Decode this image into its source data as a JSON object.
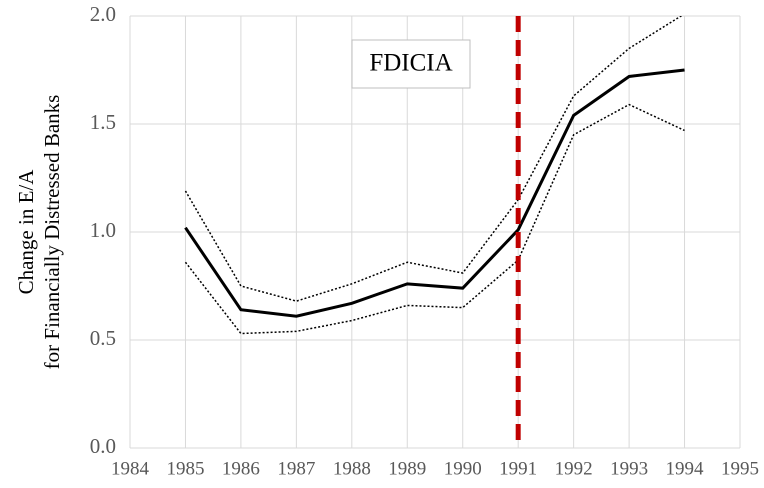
{
  "chart_data": {
    "type": "line",
    "ylabel": [
      "Change in E/A",
      "for Financially  Distressed Banks"
    ],
    "x": [
      1985,
      1986,
      1987,
      1988,
      1989,
      1990,
      1991,
      1992,
      1993,
      1994
    ],
    "series": [
      {
        "color": "#000000",
        "style": "solid",
        "values": [
          1.02,
          0.64,
          0.61,
          0.67,
          0.76,
          0.74,
          1.01,
          1.54,
          1.72,
          1.75
        ]
      },
      {
        "color": "#000000",
        "style": "dotted",
        "values": [
          1.19,
          0.75,
          0.68,
          0.76,
          0.86,
          0.81,
          1.15,
          1.63,
          1.85,
          2.01
        ]
      },
      {
        "color": "#000000",
        "style": "dotted",
        "values": [
          0.86,
          0.53,
          0.54,
          0.59,
          0.66,
          0.65,
          0.87,
          1.45,
          1.59,
          1.47
        ]
      }
    ],
    "reference_line": {
      "x": 1991,
      "color": "#c00000",
      "label": "FDICIA"
    },
    "xlim": [
      1984,
      1995
    ],
    "xticks": [
      1984,
      1985,
      1986,
      1987,
      1988,
      1989,
      1990,
      1991,
      1992,
      1993,
      1994,
      1995
    ],
    "ylim": [
      0,
      2
    ],
    "yticks": [
      {
        "value": 0,
        "label": "0.0"
      },
      {
        "value": 0.5,
        "label": "0.5"
      },
      {
        "value": 1,
        "label": "1.0"
      },
      {
        "value": 1.5,
        "label": "1.5"
      },
      {
        "value": 2,
        "label": "2.0"
      }
    ],
    "grid": true
  }
}
